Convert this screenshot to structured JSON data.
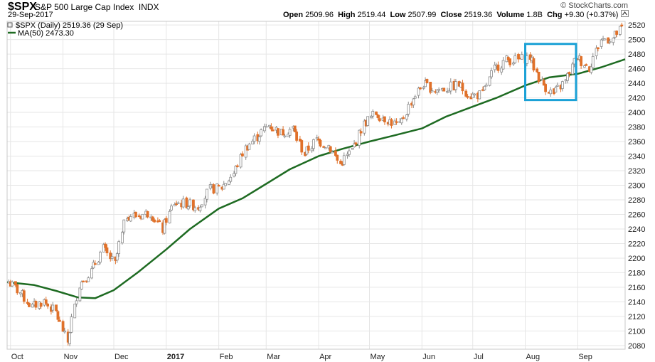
{
  "header": {
    "symbol": "$SPX",
    "name": "S&P 500 Large Cap Index",
    "exchange": "INDX",
    "date": "29-Sep-2017",
    "open_label": "Open",
    "open_value": "2509.96",
    "high_label": "High",
    "high_value": "2519.44",
    "low_label": "Low",
    "low_value": "2507.99",
    "close_label": "Close",
    "close_value": "2519.36",
    "volume_label": "Volume",
    "volume_value": "1.8B",
    "chg_label": "Chg",
    "chg_value": "+9.30 (+0.37%)",
    "credit": "© StockCharts.com"
  },
  "legend": {
    "price_label": "$SPX (Daily) 2519.36 (29 Sep)",
    "ma_label": "MA(50) 2473.30"
  },
  "colors": {
    "up": "#8c8c8c",
    "down": "#e0712a",
    "ma": "#1e6b22",
    "highlight": "#1ba1d6",
    "grid": "#e6e6e6"
  },
  "chart_data": {
    "type": "candlestick",
    "ylim": [
      2075,
      2525
    ],
    "ytick_step": 20,
    "x_range": [
      "2016-09-29",
      "2017-09-29"
    ],
    "x_ticks": [
      {
        "label": "Oct",
        "date": "2016-10-01"
      },
      {
        "label": "Nov",
        "date": "2016-11-01"
      },
      {
        "label": "Dec",
        "date": "2016-12-01"
      },
      {
        "label": "2017",
        "date": "2017-01-01",
        "bold": true
      },
      {
        "label": "Feb",
        "date": "2017-02-01"
      },
      {
        "label": "Mar",
        "date": "2017-03-01"
      },
      {
        "label": "Apr",
        "date": "2017-04-01"
      },
      {
        "label": "May",
        "date": "2017-05-01"
      },
      {
        "label": "Jun",
        "date": "2017-06-01"
      },
      {
        "label": "Jul",
        "date": "2017-07-01"
      },
      {
        "label": "Aug",
        "date": "2017-08-01"
      },
      {
        "label": "Sep",
        "date": "2017-09-01"
      }
    ],
    "price_close": [
      [
        "2016-09-30",
        2168
      ],
      [
        "2016-10-07",
        2153
      ],
      [
        "2016-10-14",
        2133
      ],
      [
        "2016-10-21",
        2141
      ],
      [
        "2016-10-28",
        2126
      ],
      [
        "2016-11-04",
        2085
      ],
      [
        "2016-11-11",
        2164
      ],
      [
        "2016-11-18",
        2182
      ],
      [
        "2016-11-25",
        2213
      ],
      [
        "2016-12-02",
        2192
      ],
      [
        "2016-12-09",
        2259
      ],
      [
        "2016-12-16",
        2258
      ],
      [
        "2016-12-23",
        2263
      ],
      [
        "2016-12-30",
        2239
      ],
      [
        "2017-01-06",
        2276
      ],
      [
        "2017-01-13",
        2275
      ],
      [
        "2017-01-20",
        2271
      ],
      [
        "2017-01-27",
        2294
      ],
      [
        "2017-02-03",
        2297
      ],
      [
        "2017-02-10",
        2316
      ],
      [
        "2017-02-17",
        2351
      ],
      [
        "2017-02-24",
        2367
      ],
      [
        "2017-03-03",
        2383
      ],
      [
        "2017-03-10",
        2372
      ],
      [
        "2017-03-17",
        2378
      ],
      [
        "2017-03-24",
        2343
      ],
      [
        "2017-03-31",
        2362
      ],
      [
        "2017-04-07",
        2355
      ],
      [
        "2017-04-14",
        2329
      ],
      [
        "2017-04-21",
        2348
      ],
      [
        "2017-04-28",
        2384
      ],
      [
        "2017-05-05",
        2399
      ],
      [
        "2017-05-12",
        2390
      ],
      [
        "2017-05-19",
        2381
      ],
      [
        "2017-05-26",
        2415
      ],
      [
        "2017-06-02",
        2439
      ],
      [
        "2017-06-09",
        2431
      ],
      [
        "2017-06-16",
        2433
      ],
      [
        "2017-06-23",
        2438
      ],
      [
        "2017-06-30",
        2423
      ],
      [
        "2017-07-07",
        2425
      ],
      [
        "2017-07-14",
        2459
      ],
      [
        "2017-07-21",
        2472
      ],
      [
        "2017-07-28",
        2472
      ],
      [
        "2017-08-04",
        2476
      ],
      [
        "2017-08-11",
        2441
      ],
      [
        "2017-08-18",
        2425
      ],
      [
        "2017-08-25",
        2443
      ],
      [
        "2017-09-01",
        2476
      ],
      [
        "2017-09-08",
        2461
      ],
      [
        "2017-09-15",
        2500
      ],
      [
        "2017-09-22",
        2502
      ],
      [
        "2017-09-29",
        2519
      ]
    ],
    "ma50": [
      [
        "2016-09-29",
        2167
      ],
      [
        "2016-10-15",
        2163
      ],
      [
        "2016-10-28",
        2155
      ],
      [
        "2016-11-10",
        2146
      ],
      [
        "2016-11-20",
        2145
      ],
      [
        "2016-12-01",
        2156
      ],
      [
        "2016-12-15",
        2180
      ],
      [
        "2017-01-01",
        2212
      ],
      [
        "2017-01-15",
        2240
      ],
      [
        "2017-02-01",
        2268
      ],
      [
        "2017-02-15",
        2282
      ],
      [
        "2017-03-01",
        2302
      ],
      [
        "2017-03-15",
        2322
      ],
      [
        "2017-04-01",
        2340
      ],
      [
        "2017-04-15",
        2350
      ],
      [
        "2017-05-01",
        2360
      ],
      [
        "2017-05-15",
        2368
      ],
      [
        "2017-06-01",
        2378
      ],
      [
        "2017-06-15",
        2394
      ],
      [
        "2017-07-01",
        2408
      ],
      [
        "2017-07-15",
        2420
      ],
      [
        "2017-08-01",
        2437
      ],
      [
        "2017-08-15",
        2448
      ],
      [
        "2017-09-01",
        2453
      ],
      [
        "2017-09-15",
        2462
      ],
      [
        "2017-09-29",
        2473
      ]
    ],
    "highlight": {
      "start": "2017-08-01",
      "end": "2017-08-31",
      "low": 2417,
      "high": 2494
    }
  }
}
